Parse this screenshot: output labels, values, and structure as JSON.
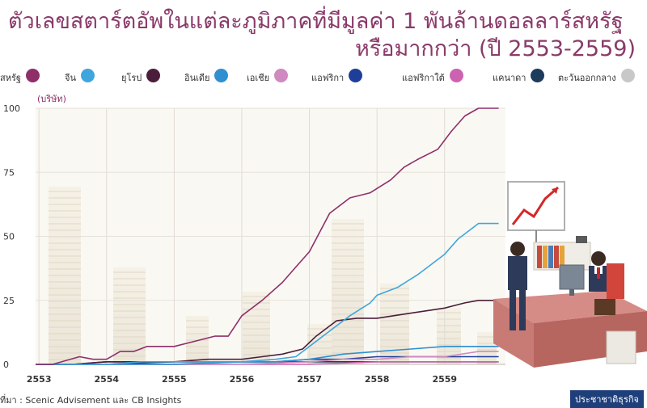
{
  "title_line1": "ตัวเลขสตาร์ตอัพในแต่ละภูมิภาคที่มีมูลค่า 1 พันล้านดอลลาร์สหรัฐ",
  "title_line2": "หรือมากกว่า (ปี 2553-2559)",
  "source": "ที่มา : Scenic Advisement และ CB Insights",
  "credit": "ประชาชาติธุรกิจ",
  "chart_data": {
    "type": "line",
    "ylabel": "(บริษัท)",
    "xlabel": "",
    "x_ticks": [
      "2553",
      "2554",
      "2555",
      "2556",
      "2557",
      "2558",
      "2559"
    ],
    "y_ticks": [
      "100",
      "75",
      "50",
      "25",
      "0"
    ],
    "ylim": [
      0,
      100
    ],
    "xlim": [
      2552.95,
      2559.9
    ],
    "grid": true,
    "legend_position": "top",
    "series": [
      {
        "name": "สหรัฐ",
        "color": "#8e2f6a",
        "points": [
          [
            2552.95,
            0
          ],
          [
            2553.2,
            0
          ],
          [
            2553.6,
            3
          ],
          [
            2553.8,
            2
          ],
          [
            2554.0,
            2
          ],
          [
            2554.2,
            5
          ],
          [
            2554.4,
            5
          ],
          [
            2554.6,
            7
          ],
          [
            2554.8,
            7
          ],
          [
            2555.0,
            7
          ],
          [
            2555.3,
            9
          ],
          [
            2555.6,
            11
          ],
          [
            2555.8,
            11
          ],
          [
            2556.0,
            19
          ],
          [
            2556.3,
            25
          ],
          [
            2556.6,
            32
          ],
          [
            2556.8,
            38
          ],
          [
            2557.0,
            44
          ],
          [
            2557.3,
            59
          ],
          [
            2557.6,
            65
          ],
          [
            2557.9,
            67
          ],
          [
            2558.2,
            72
          ],
          [
            2558.4,
            77
          ],
          [
            2558.6,
            80
          ],
          [
            2558.9,
            84
          ],
          [
            2559.1,
            91
          ],
          [
            2559.3,
            97
          ],
          [
            2559.5,
            100
          ],
          [
            2559.8,
            100
          ]
        ]
      },
      {
        "name": "จีน",
        "color": "#3ea6dc",
        "points": [
          [
            2552.95,
            0
          ],
          [
            2553.5,
            0
          ],
          [
            2554.0,
            0
          ],
          [
            2554.5,
            1
          ],
          [
            2555.0,
            1
          ],
          [
            2555.5,
            1
          ],
          [
            2556.0,
            1
          ],
          [
            2556.5,
            2
          ],
          [
            2556.8,
            3
          ],
          [
            2557.0,
            7
          ],
          [
            2557.3,
            13
          ],
          [
            2557.6,
            19
          ],
          [
            2557.9,
            24
          ],
          [
            2558.0,
            27
          ],
          [
            2558.3,
            30
          ],
          [
            2558.6,
            35
          ],
          [
            2559.0,
            43
          ],
          [
            2559.2,
            49
          ],
          [
            2559.4,
            53
          ],
          [
            2559.5,
            55
          ],
          [
            2559.8,
            55
          ]
        ]
      },
      {
        "name": "ยุโรป",
        "color": "#4a1e3a",
        "points": [
          [
            2552.95,
            0
          ],
          [
            2553.5,
            0
          ],
          [
            2554.0,
            1
          ],
          [
            2554.5,
            1
          ],
          [
            2555.0,
            1
          ],
          [
            2555.5,
            2
          ],
          [
            2556.0,
            2
          ],
          [
            2556.3,
            3
          ],
          [
            2556.6,
            4
          ],
          [
            2556.9,
            6
          ],
          [
            2557.1,
            11
          ],
          [
            2557.4,
            17
          ],
          [
            2557.7,
            18
          ],
          [
            2558.0,
            18
          ],
          [
            2558.5,
            20
          ],
          [
            2559.0,
            22
          ],
          [
            2559.3,
            24
          ],
          [
            2559.5,
            25
          ],
          [
            2559.8,
            25
          ]
        ]
      },
      {
        "name": "อินเดีย",
        "color": "#2f8fd0",
        "points": [
          [
            2552.95,
            0
          ],
          [
            2554.0,
            0
          ],
          [
            2555.0,
            0
          ],
          [
            2556.0,
            1
          ],
          [
            2556.5,
            1
          ],
          [
            2557.0,
            2
          ],
          [
            2557.5,
            4
          ],
          [
            2558.0,
            5
          ],
          [
            2558.5,
            6
          ],
          [
            2559.0,
            7
          ],
          [
            2559.5,
            7
          ],
          [
            2559.8,
            7
          ]
        ]
      },
      {
        "name": "เอเชีย",
        "color": "#d08ac0",
        "points": [
          [
            2552.95,
            0
          ],
          [
            2554.0,
            0
          ],
          [
            2555.0,
            0
          ],
          [
            2556.0,
            0
          ],
          [
            2557.0,
            1
          ],
          [
            2557.5,
            2
          ],
          [
            2558.0,
            2
          ],
          [
            2558.5,
            3
          ],
          [
            2559.0,
            3
          ],
          [
            2559.5,
            5
          ],
          [
            2559.8,
            5
          ]
        ]
      },
      {
        "name": "แอฟริกา",
        "color": "#1d3f9a",
        "points": [
          [
            2552.95,
            0
          ],
          [
            2553.5,
            0
          ],
          [
            2554.0,
            1
          ],
          [
            2554.5,
            1
          ],
          [
            2555.0,
            1
          ],
          [
            2555.5,
            1
          ],
          [
            2556.0,
            1
          ],
          [
            2556.5,
            1
          ],
          [
            2557.0,
            2
          ],
          [
            2557.5,
            2
          ],
          [
            2558.0,
            3
          ],
          [
            2558.5,
            3
          ],
          [
            2559.0,
            3
          ],
          [
            2559.5,
            3
          ],
          [
            2559.8,
            3
          ]
        ]
      },
      {
        "name": "แอฟริกาใต้",
        "color": "#cc63b0",
        "points": [
          [
            2552.95,
            0
          ],
          [
            2554.0,
            0
          ],
          [
            2555.0,
            0
          ],
          [
            2556.0,
            0
          ],
          [
            2557.0,
            0
          ],
          [
            2558.0,
            1
          ],
          [
            2558.5,
            1
          ],
          [
            2559.0,
            1
          ],
          [
            2559.8,
            1
          ]
        ]
      },
      {
        "name": "แคนาดา",
        "color": "#1d3b5a",
        "points": [
          [
            2552.95,
            0
          ],
          [
            2554.0,
            0
          ],
          [
            2555.0,
            1
          ],
          [
            2556.0,
            1
          ],
          [
            2557.0,
            1
          ],
          [
            2558.0,
            1
          ],
          [
            2558.5,
            1
          ],
          [
            2559.0,
            1
          ],
          [
            2559.8,
            1
          ]
        ]
      },
      {
        "name": "ตะวันออกกลาง",
        "color": "#c8c8c8",
        "points": [
          [
            2552.95,
            0
          ],
          [
            2554.0,
            0
          ],
          [
            2555.0,
            0
          ],
          [
            2556.0,
            1
          ],
          [
            2557.0,
            1
          ],
          [
            2558.0,
            1
          ],
          [
            2559.0,
            1
          ],
          [
            2559.8,
            1
          ]
        ]
      }
    ]
  }
}
